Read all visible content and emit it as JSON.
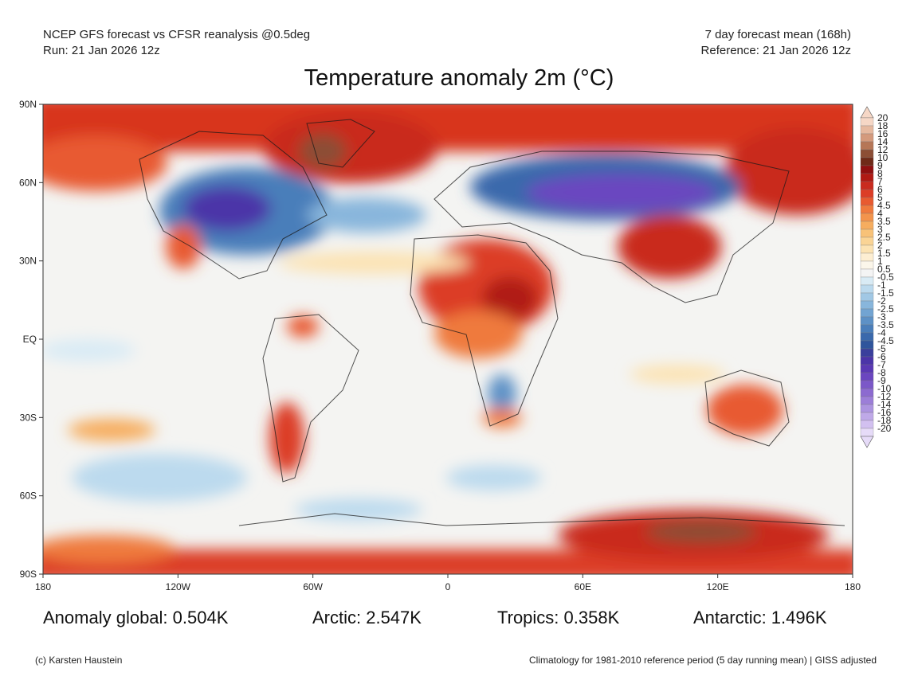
{
  "header": {
    "line1_left": "NCEP GFS forecast vs CFSR reanalysis @0.5deg",
    "line2_left": "Run: 21 Jan 2026 12z",
    "line1_right": "7 day forecast mean (168h)",
    "line2_right": "Reference: 21 Jan 2026 12z"
  },
  "title": "Temperature anomaly 2m (°C)",
  "axes": {
    "lat_labels": [
      "90N",
      "60N",
      "30N",
      "EQ",
      "30S",
      "60S",
      "90S"
    ],
    "lon_labels": [
      "180",
      "120W",
      "60W",
      "0",
      "60E",
      "120E",
      "180"
    ]
  },
  "colorbar": {
    "labels": [
      "20",
      "18",
      "16",
      "14",
      "12",
      "10",
      "9",
      "8",
      "7",
      "6",
      "5",
      "4.5",
      "4",
      "3.5",
      "3",
      "2.5",
      "2",
      "1.5",
      "1",
      "0.5",
      "-0.5",
      "-1",
      "-1.5",
      "-2",
      "-2.5",
      "-3",
      "-3.5",
      "-4",
      "-4.5",
      "-5",
      "-6",
      "-7",
      "-8",
      "-9",
      "-10",
      "-12",
      "-14",
      "-16",
      "-18",
      "-20"
    ],
    "colors": [
      "#f6d7c6",
      "#e6b9a0",
      "#d49a7d",
      "#b67657",
      "#8c4e35",
      "#6f2a18",
      "#8f1010",
      "#b01a14",
      "#c92b1f",
      "#dc3d26",
      "#e85a30",
      "#ef7a3d",
      "#f3944c",
      "#f6ad5f",
      "#f8c278",
      "#fad495",
      "#fce3b3",
      "#fdeed2",
      "#fbf6ea",
      "#f4f4f4",
      "#d9ebf5",
      "#bcdaee",
      "#a1c8e5",
      "#88b6dc",
      "#72a4d2",
      "#5d91c6",
      "#4a7eba",
      "#3a69ac",
      "#2f559c",
      "#3a3f9c",
      "#4b34a8",
      "#5a38b4",
      "#6b46c0",
      "#7b58c8",
      "#8c6ad0",
      "#9c7ed8",
      "#ad94e0",
      "#bfa9e8",
      "#d2c0f0",
      "#e6dbf8"
    ]
  },
  "stats": {
    "global": "Anomaly global: 0.504K",
    "arctic": "Arctic: 2.547K",
    "tropics": "Tropics: 0.358K",
    "antarctic": "Antarctic: 1.496K"
  },
  "footer": {
    "left": "(c) Karsten Haustein",
    "right": "Climatology for 1981-2010 reference period (5 day running mean) | GISS adjusted"
  }
}
